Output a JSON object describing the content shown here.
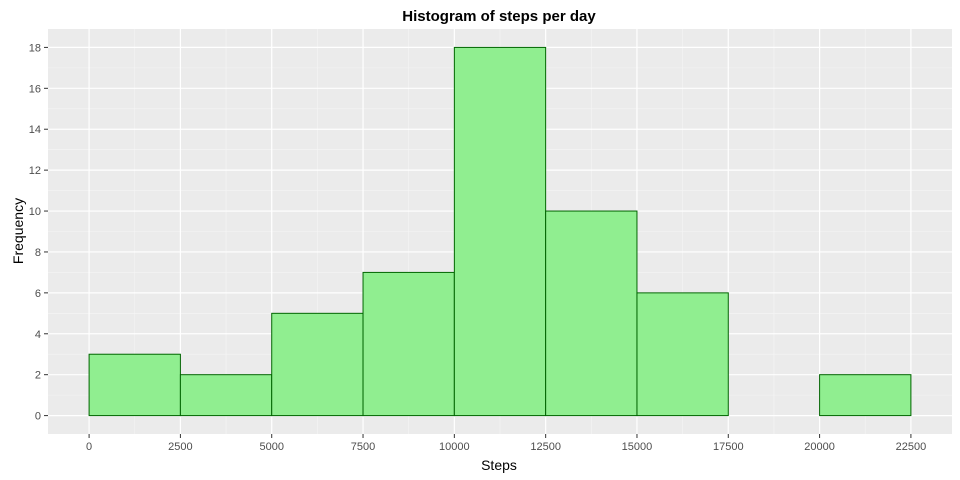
{
  "chart_data": {
    "type": "bar",
    "title": "Histogram of steps per day",
    "xlabel": "Steps",
    "ylabel": "Frequency",
    "bins": [
      {
        "x0": 0,
        "x1": 2500,
        "count": 3
      },
      {
        "x0": 2500,
        "x1": 5000,
        "count": 2
      },
      {
        "x0": 5000,
        "x1": 7500,
        "count": 5
      },
      {
        "x0": 7500,
        "x1": 10000,
        "count": 7
      },
      {
        "x0": 10000,
        "x1": 12500,
        "count": 18
      },
      {
        "x0": 12500,
        "x1": 15000,
        "count": 10
      },
      {
        "x0": 15000,
        "x1": 17500,
        "count": 6
      },
      {
        "x0": 17500,
        "x1": 20000,
        "count": 0
      },
      {
        "x0": 20000,
        "x1": 22500,
        "count": 2
      }
    ],
    "x_ticks": [
      "0",
      "2500",
      "5000",
      "7500",
      "10000",
      "12500",
      "15000",
      "17500",
      "20000",
      "22500"
    ],
    "y_ticks": [
      "0",
      "2",
      "4",
      "6",
      "8",
      "10",
      "12",
      "14",
      "16",
      "18"
    ],
    "xlim": [
      -1125,
      23625
    ],
    "ylim": [
      -0.9,
      18.9
    ],
    "grid": true,
    "colors": {
      "panel_background": "#ebebeb",
      "grid_major": "#ffffff",
      "bar_fill": "#90ee90",
      "bar_stroke": "#006400"
    }
  }
}
